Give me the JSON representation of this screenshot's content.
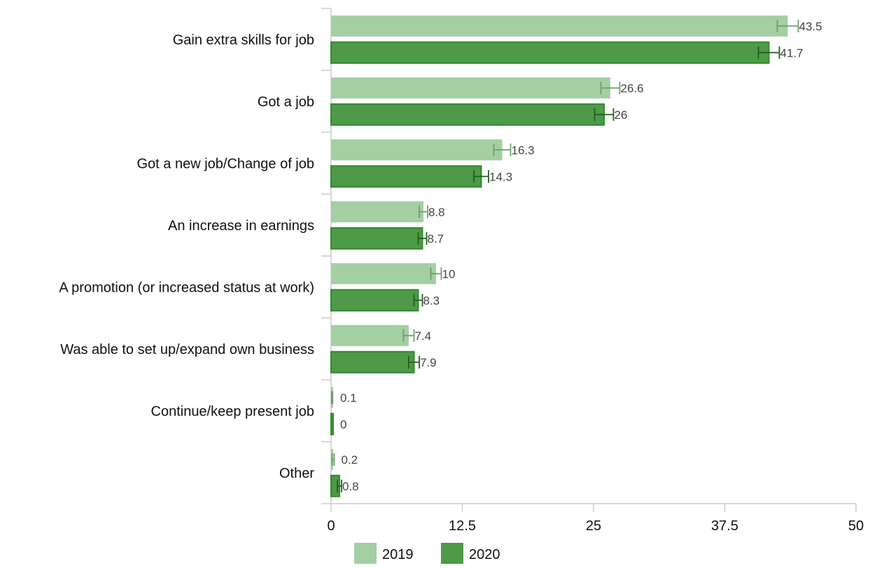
{
  "chart_data": {
    "type": "bar",
    "orientation": "horizontal",
    "categories": [
      "Gain extra skills for job",
      "Got a job",
      "Got a new job/Change of job",
      "An increase in earnings",
      "A promotion (or increased status at work)",
      "Was able to set up/expand own business",
      "Continue/keep present job",
      "Other"
    ],
    "series": [
      {
        "name": "2019",
        "color": "#a3cfa3",
        "error_color": "#6e9e6e",
        "values": [
          43.5,
          26.6,
          16.3,
          8.8,
          10,
          7.4,
          0.1,
          0.2
        ],
        "value_labels": [
          "43.5",
          "26.6",
          "16.3",
          "8.8",
          "10",
          "7.4",
          "0.1",
          "0.2"
        ],
        "error": [
          1.0,
          0.9,
          0.8,
          0.4,
          0.5,
          0.5,
          0.05,
          0.1
        ]
      },
      {
        "name": "2020",
        "color": "#4e9a48",
        "stroke": "#2f8a2b",
        "error_color": "#1f5e1b",
        "values": [
          41.7,
          26,
          14.3,
          8.7,
          8.3,
          7.9,
          0,
          0.8
        ],
        "value_labels": [
          "41.7",
          "26",
          "14.3",
          "8.7",
          "8.3",
          "7.9",
          "0",
          "0.8"
        ],
        "error": [
          1.0,
          0.9,
          0.7,
          0.4,
          0.4,
          0.5,
          0.0,
          0.2
        ]
      }
    ],
    "x_ticks": [
      "0",
      "12.5",
      "25",
      "37.5",
      "50"
    ],
    "xlim": [
      0,
      50
    ],
    "title": "",
    "xlabel": "",
    "ylabel": "",
    "grid": false,
    "legend": "bottom-center"
  }
}
